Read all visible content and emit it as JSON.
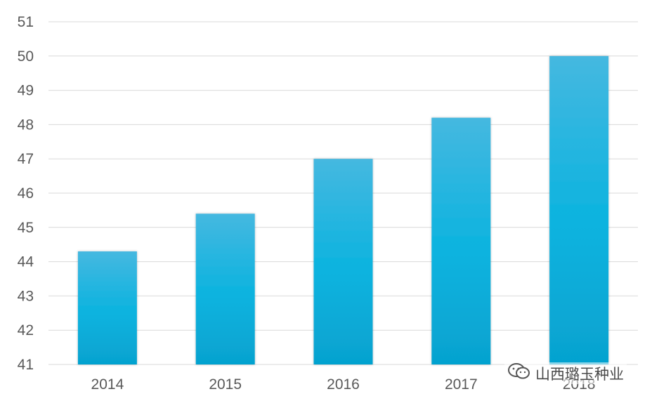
{
  "chart_data": {
    "type": "bar",
    "categories": [
      "2014",
      "2015",
      "2016",
      "2017",
      "2018"
    ],
    "values": [
      44.3,
      45.4,
      47.0,
      48.2,
      50.0
    ],
    "ylim": [
      41,
      51
    ],
    "yticks": [
      41,
      42,
      43,
      44,
      45,
      46,
      47,
      48,
      49,
      50,
      51
    ],
    "grid": true,
    "colors": {
      "bar_top": "#45b8e0",
      "bar_mid": "#0ab3df",
      "bar_bottom": "#06a2cf",
      "grid": "#d9d9d9",
      "text": "#595959"
    }
  },
  "watermark": {
    "text": "山西璐玉种业",
    "icon": "wechat-icon"
  }
}
